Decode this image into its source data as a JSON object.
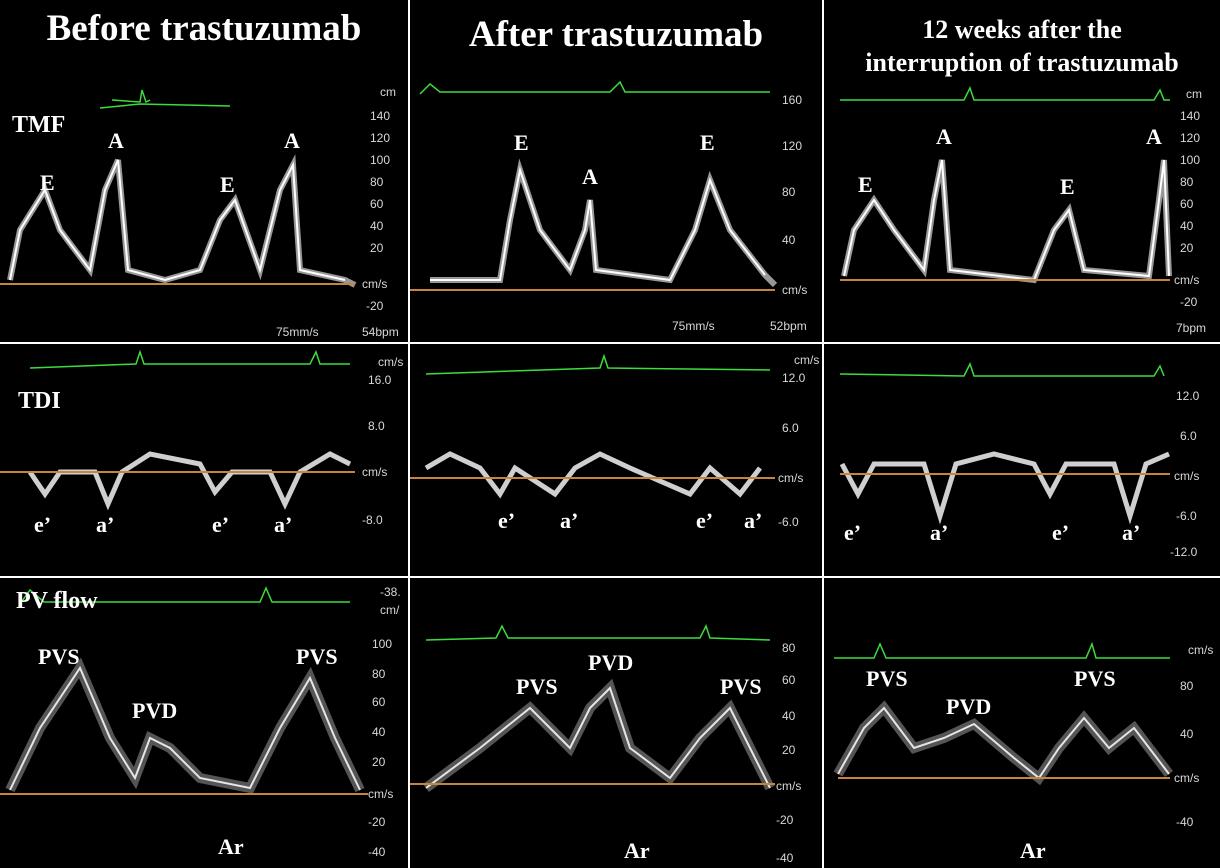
{
  "columns": [
    {
      "title": "Before trastuzumab"
    },
    {
      "title": "After trastuzumab"
    },
    {
      "title_line1": "12 weeks after the",
      "title_line2": "interruption of trastuzumab"
    }
  ],
  "row_labels": {
    "tmf": "TMF",
    "tdi": "TDI",
    "pv": "PV flow"
  },
  "tmf": [
    {
      "waves": [
        "E",
        "A",
        "E",
        "A"
      ],
      "ticks": [
        "140",
        "120",
        "100",
        "80",
        "60",
        "40",
        "20",
        "cm/s",
        "-20"
      ],
      "unit_top": "cm",
      "speed": "75mm/s",
      "bpm": "54bpm"
    },
    {
      "waves": [
        "E",
        "A",
        "E"
      ],
      "ticks": [
        "160",
        "120",
        "80",
        "40",
        "cm/s"
      ],
      "speed": "75mm/s",
      "bpm": "52bpm"
    },
    {
      "waves": [
        "E",
        "A",
        "E",
        "A"
      ],
      "ticks": [
        "140",
        "120",
        "100",
        "80",
        "60",
        "40",
        "20",
        "cm/s",
        "-20"
      ],
      "unit_top": "cm",
      "bpm": "7bpm"
    }
  ],
  "tdi": [
    {
      "waves": [
        "e’",
        "a’",
        "e’",
        "a’"
      ],
      "ticks": [
        "cm/s",
        "16.0",
        "8.0",
        "cm/s",
        "-8.0"
      ]
    },
    {
      "waves": [
        "e’",
        "a’",
        "e’",
        "a’"
      ],
      "ticks": [
        "cm/s",
        "12.0",
        "6.0",
        "cm/s",
        "-6.0"
      ]
    },
    {
      "waves": [
        "e’",
        "a’",
        "e’",
        "a’"
      ],
      "ticks": [
        "12.0",
        "6.0",
        "cm/s",
        "-6.0",
        "-12.0"
      ]
    }
  ],
  "pv": [
    {
      "waves": [
        "PVS",
        "PVD",
        "PVS",
        "Ar"
      ],
      "ticks": [
        "-38.",
        "cm/",
        "100",
        "80",
        "60",
        "40",
        "20",
        "cm/s",
        "-20",
        "-40"
      ]
    },
    {
      "waves": [
        "PVD",
        "PVS",
        "PVS",
        "Ar"
      ],
      "ticks": [
        "80",
        "60",
        "40",
        "20",
        "cm/s",
        "-20",
        "-40"
      ]
    },
    {
      "waves": [
        "PVS",
        "PVD",
        "PVS",
        "Ar"
      ],
      "ticks": [
        "cm/s",
        "80",
        "40",
        "cm/s",
        "-40"
      ]
    }
  ],
  "colors": {
    "ecg": "#3ddc3d",
    "baseline": "#c8843c",
    "label": "#ffffff",
    "divider": "#ffffff"
  }
}
